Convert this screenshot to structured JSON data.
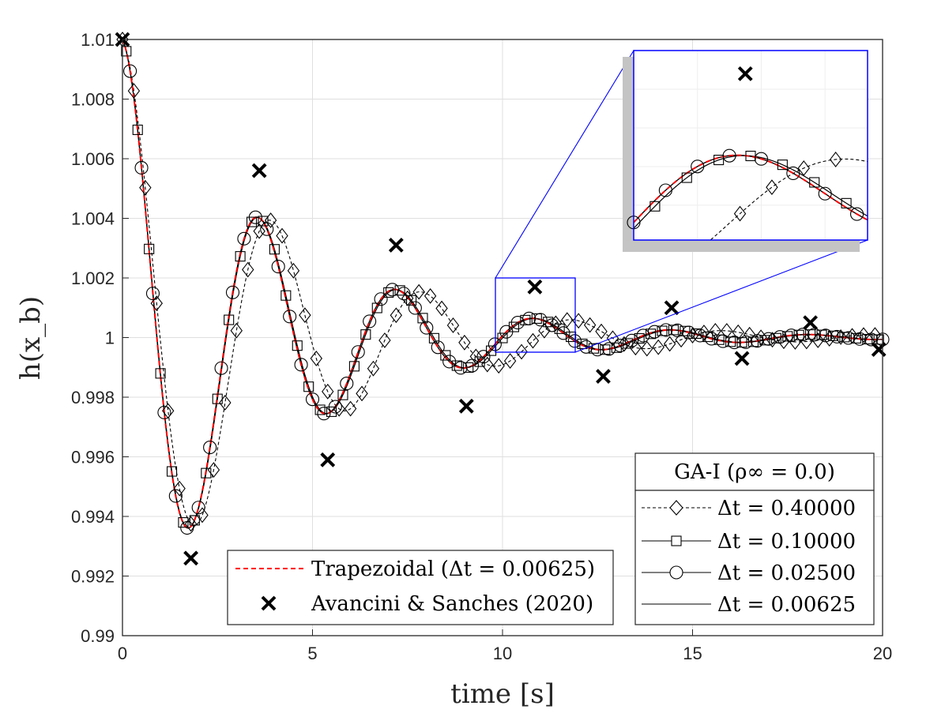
{
  "chart_data": {
    "type": "line",
    "title": "",
    "xlabel": "time [s]",
    "ylabel": "h(x_b)",
    "xlim": [
      0,
      20
    ],
    "ylim": [
      0.99,
      1.01
    ],
    "grid": true,
    "xticks": [
      "0",
      "5",
      "10",
      "15",
      "20"
    ],
    "yticks": [
      "0.99",
      "0.992",
      "0.994",
      "0.996",
      "0.998",
      "1",
      "1.002",
      "1.004",
      "1.006",
      "1.008",
      "1.01"
    ],
    "legend_main": {
      "position": "bottom-center",
      "entries": [
        "Trapezoidal (Δt = 0.00625)",
        "Avancini & Sanches (2020)"
      ]
    },
    "legend_ga": {
      "position": "bottom-right",
      "title": "GA-I (ρ∞ = 0.0)",
      "entries": [
        "Δt = 0.40000",
        "Δt = 0.10000",
        "Δt = 0.02500",
        "Δt = 0.00625"
      ]
    },
    "series": [
      {
        "name": "Δt = 0.40000",
        "style": "dashed",
        "marker": "diamond",
        "model": {
          "A": 0.01,
          "T": 3.96,
          "tau": 4.2
        }
      },
      {
        "name": "Δt = 0.10000",
        "style": "solid",
        "marker": "square",
        "model": {
          "A": 0.01,
          "T": 3.64,
          "tau": 3.96
        }
      },
      {
        "name": "Δt = 0.02500",
        "style": "solid",
        "marker": "circle",
        "model": {
          "A": 0.01,
          "T": 3.62,
          "tau": 3.95
        }
      },
      {
        "name": "Δt = 0.00625",
        "style": "solid",
        "marker": "none",
        "model": {
          "A": 0.01,
          "T": 3.62,
          "tau": 3.95
        }
      },
      {
        "name": "Trapezoidal (Δt = 0.00625)",
        "style": "dashed-red",
        "marker": "none",
        "model": {
          "A": 0.01,
          "T": 3.62,
          "tau": 3.95
        }
      }
    ],
    "reference_points": {
      "name": "Avancini & Sanches (2020)",
      "x": [
        0.0,
        1.8,
        3.6,
        5.4,
        7.2,
        9.05,
        10.85,
        12.65,
        14.45,
        16.3,
        18.1,
        19.9
      ],
      "y": [
        1.01,
        0.9926,
        1.0056,
        0.9959,
        1.0031,
        0.9977,
        1.0017,
        0.9987,
        1.001,
        0.9993,
        1.0005,
        0.9996
      ]
    },
    "inset": {
      "xlim": [
        9.8,
        12.0
      ],
      "ylim": [
        0.99955,
        1.002
      ],
      "description": "zoom of peak near t = 10.9 s"
    },
    "colors": {
      "trapezoidal": "#ff0000",
      "series": "#000000",
      "inset_frame": "#0000ff",
      "grid": "#dfdfdf"
    }
  }
}
